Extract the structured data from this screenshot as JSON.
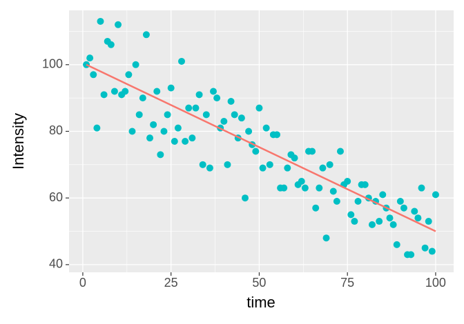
{
  "chart_data": {
    "type": "scatter",
    "xlabel": "time",
    "ylabel": "Intensity",
    "x": [
      1,
      2,
      3,
      4,
      5,
      6,
      7,
      8,
      9,
      10,
      11,
      12,
      13,
      14,
      15,
      16,
      17,
      18,
      19,
      20,
      21,
      22,
      23,
      24,
      25,
      26,
      27,
      28,
      29,
      30,
      31,
      32,
      33,
      34,
      35,
      36,
      37,
      38,
      39,
      40,
      41,
      42,
      43,
      44,
      45,
      46,
      47,
      48,
      49,
      50,
      51,
      52,
      53,
      54,
      55,
      56,
      57,
      58,
      59,
      60,
      61,
      62,
      63,
      64,
      65,
      66,
      67,
      68,
      69,
      70,
      71,
      72,
      73,
      74,
      75,
      76,
      77,
      78,
      79,
      80,
      81,
      82,
      83,
      84,
      85,
      86,
      87,
      88,
      89,
      90,
      91,
      92,
      93,
      94,
      95,
      96,
      97,
      98,
      99,
      100
    ],
    "values": [
      100,
      102,
      97,
      81,
      113,
      91,
      107,
      106,
      92,
      112,
      91,
      92,
      97,
      80,
      100,
      85,
      90,
      109,
      78,
      82,
      92,
      73,
      80,
      85,
      93,
      77,
      81,
      101,
      77,
      87,
      78,
      87,
      91,
      70,
      85,
      69,
      92,
      90,
      81,
      83,
      70,
      89,
      85,
      78,
      84,
      60,
      80,
      76,
      74,
      87,
      69,
      81,
      70,
      79,
      79,
      63,
      63,
      69,
      73,
      72,
      64,
      65,
      63,
      74,
      74,
      57,
      63,
      69,
      48,
      70,
      62,
      59,
      74,
      64,
      65,
      55,
      53,
      59,
      64,
      64,
      60,
      52,
      59,
      53,
      61,
      57,
      54,
      52,
      46,
      59,
      57,
      43,
      43,
      56,
      54,
      63,
      45,
      53,
      44,
      61
    ],
    "color": "#00BFC4",
    "fit": {
      "x": [
        1,
        100
      ],
      "values": [
        100,
        50
      ],
      "color": "#F8766D"
    },
    "xlim": [
      -3.9,
      105.1
    ],
    "ylim": [
      37.7,
      116.3
    ],
    "xticks": [
      0,
      25,
      50,
      75,
      100
    ],
    "yticks": [
      40,
      60,
      80,
      100
    ],
    "xminor": [
      12.5,
      37.5,
      62.5,
      87.5
    ],
    "yminor": [
      50,
      70,
      90,
      110
    ],
    "grid": true
  }
}
